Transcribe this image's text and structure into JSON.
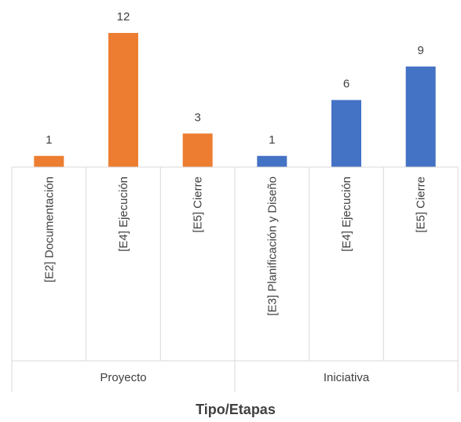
{
  "chart_data": {
    "type": "bar",
    "xlabel": "Tipo/Etapas",
    "ylabel": "",
    "title": "",
    "ylim": [
      0,
      12
    ],
    "grid": false,
    "groups": [
      {
        "name": "Proyecto",
        "color": "#ED7D31",
        "categories": [
          "[E2] Documentación",
          "[E4] Ejecución",
          "[E5] Cierre"
        ],
        "values": [
          1,
          12,
          3
        ]
      },
      {
        "name": "Iniciativa",
        "color": "#4472C4",
        "categories": [
          "[E3] Planificación y Diseño",
          "[E4] Ejecución",
          "[E5] Cierre"
        ],
        "values": [
          1,
          6,
          9
        ]
      }
    ]
  }
}
